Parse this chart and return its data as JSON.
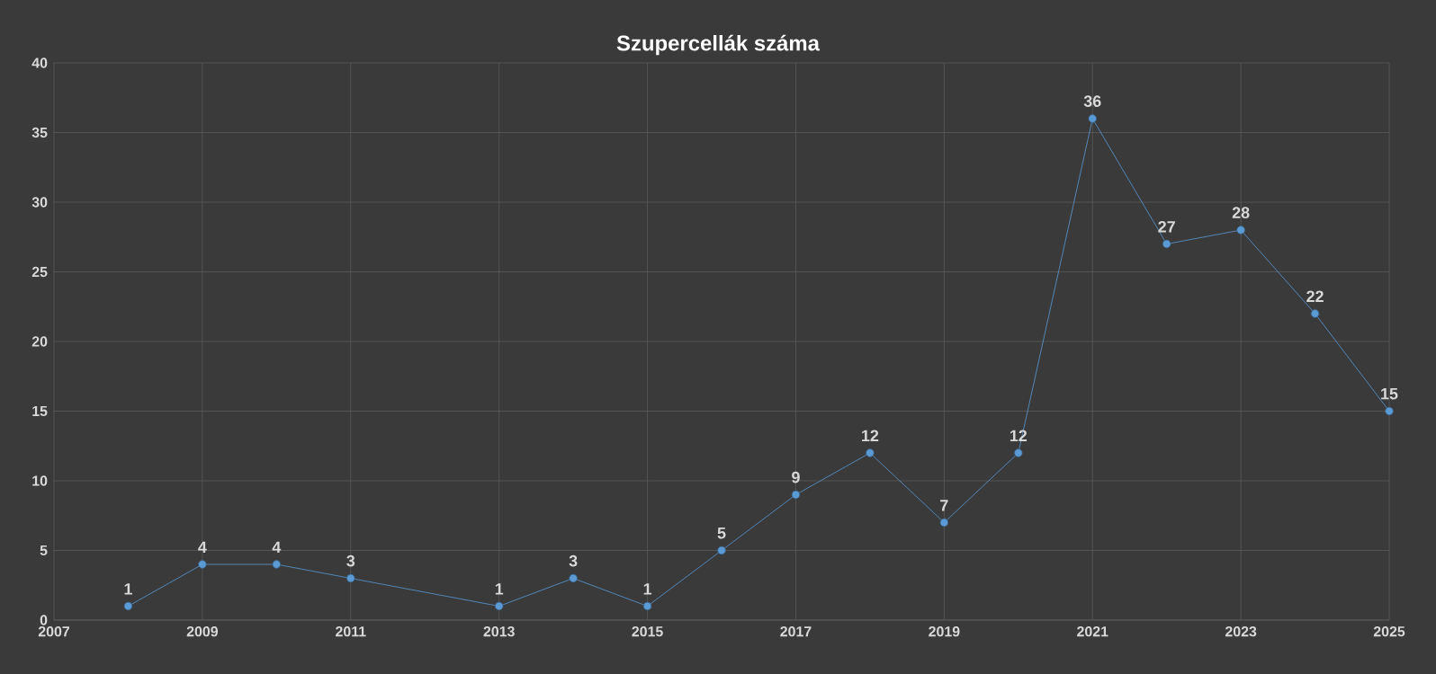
{
  "chart_data": {
    "type": "line",
    "title": "Szupercellák száma",
    "x": [
      2008,
      2009,
      2010,
      2011,
      2013,
      2014,
      2015,
      2016,
      2017,
      2018,
      2019,
      2020,
      2021,
      2022,
      2023,
      2024,
      2025
    ],
    "values": [
      1,
      4,
      4,
      3,
      1,
      3,
      1,
      5,
      9,
      12,
      7,
      12,
      36,
      27,
      28,
      22,
      15
    ],
    "color": "#5b9bd5",
    "marker": "circle",
    "data_labels": true,
    "grid": true,
    "xlim": [
      2007,
      2025
    ],
    "xticks": [
      2007,
      2009,
      2011,
      2013,
      2015,
      2017,
      2019,
      2021,
      2023,
      2025
    ],
    "ylim": [
      0,
      40
    ],
    "yticks": [
      0,
      5,
      10,
      15,
      20,
      25,
      30,
      35,
      40
    ]
  }
}
